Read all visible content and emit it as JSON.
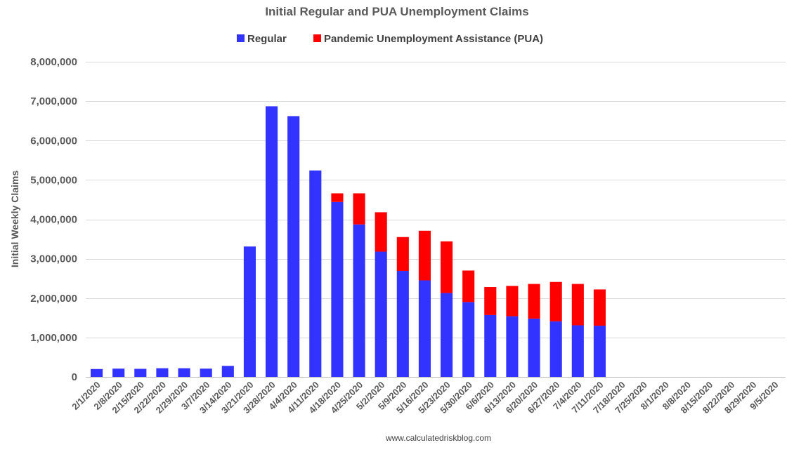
{
  "chart_data": {
    "type": "bar",
    "stacked": true,
    "title": "Initial Regular and PUA Unemployment Claims",
    "ylabel": "Initial Weekly Claims",
    "xlabel": "",
    "ylim": [
      0,
      8000000
    ],
    "yticks": [
      0,
      1000000,
      2000000,
      3000000,
      4000000,
      5000000,
      6000000,
      7000000,
      8000000
    ],
    "ytick_labels": [
      "0",
      "1,000,000",
      "2,000,000",
      "3,000,000",
      "4,000,000",
      "5,000,000",
      "6,000,000",
      "7,000,000",
      "8,000,000"
    ],
    "grid": true,
    "legend_position": "top-center",
    "categories": [
      "2/1/2020",
      "2/8/2020",
      "2/15/2020",
      "2/22/2020",
      "2/29/2020",
      "3/7/2020",
      "3/14/2020",
      "3/21/2020",
      "3/28/2020",
      "4/4/2020",
      "4/11/2020",
      "4/18/2020",
      "4/25/2020",
      "5/2/2020",
      "5/9/2020",
      "5/16/2020",
      "5/23/2020",
      "5/30/2020",
      "6/6/2020",
      "6/13/2020",
      "6/20/2020",
      "6/27/2020",
      "7/4/2020",
      "7/11/2020",
      "7/18/2020",
      "7/25/2020",
      "8/1/2020",
      "8/8/2020",
      "8/15/2020",
      "8/22/2020",
      "8/29/2020",
      "9/5/2020"
    ],
    "series": [
      {
        "name": "Regular",
        "color": "#3333ff",
        "values": [
          200000,
          210000,
          205000,
          220000,
          220000,
          210000,
          280000,
          3310000,
          6870000,
          6620000,
          5240000,
          4440000,
          3870000,
          3180000,
          2690000,
          2450000,
          2130000,
          1900000,
          1570000,
          1540000,
          1480000,
          1410000,
          1310000,
          1300000,
          null,
          null,
          null,
          null,
          null,
          null,
          null,
          null
        ]
      },
      {
        "name": "Pandemic Unemployment Assistance (PUA)",
        "color": "#ff0000",
        "values": [
          0,
          0,
          0,
          0,
          0,
          0,
          0,
          0,
          0,
          0,
          0,
          220000,
          790000,
          1000000,
          860000,
          1260000,
          1310000,
          800000,
          710000,
          770000,
          880000,
          1000000,
          1050000,
          920000,
          null,
          null,
          null,
          null,
          null,
          null,
          null,
          null
        ]
      }
    ]
  },
  "footer": {
    "source": "www.calculatedriskblog.com"
  }
}
